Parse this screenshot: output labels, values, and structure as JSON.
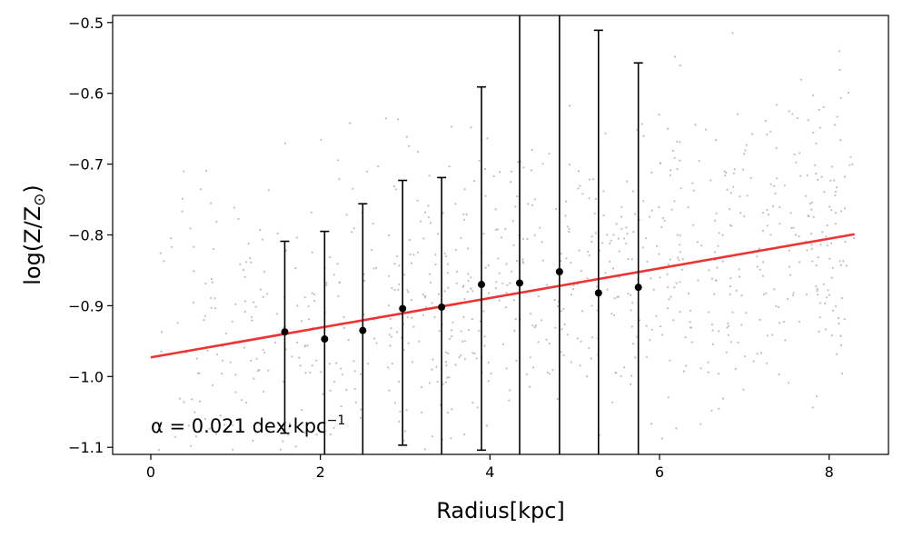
{
  "chart_data": {
    "type": "scatter",
    "title": "",
    "xlabel": "Radius[kpc]",
    "ylabel_main": "log(Z/Z",
    "ylabel_sub": "⊙",
    "ylabel_close": ")",
    "xlim": [
      -0.45,
      8.7
    ],
    "ylim": [
      -1.11,
      -0.49
    ],
    "x_ticks": [
      0,
      2,
      4,
      6,
      8
    ],
    "x_tick_labels": [
      "0",
      "2",
      "4",
      "6",
      "8"
    ],
    "y_ticks": [
      -0.5,
      -0.6,
      -0.7,
      -0.8,
      -0.9,
      -1.0,
      -1.1
    ],
    "y_tick_labels": [
      "−0.5",
      "−0.6",
      "−0.7",
      "−0.8",
      "−0.9",
      "−1.0",
      "−1.1"
    ],
    "grid": false,
    "fit_line": {
      "x": [
        0,
        8.3
      ],
      "y": [
        -0.973,
        -0.799
      ],
      "color": "#ee3333"
    },
    "binned_points": {
      "color": "#000000",
      "x": [
        1.58,
        2.05,
        2.5,
        2.97,
        3.43,
        3.9,
        4.35,
        4.82,
        5.28,
        5.75
      ],
      "y": [
        -0.937,
        -0.947,
        -0.935,
        -0.904,
        -0.902,
        -0.87,
        -0.868,
        -0.852,
        -0.882,
        -0.874
      ],
      "err_low": [
        -1.08,
        -1.11,
        -1.11,
        -1.097,
        -1.11,
        -1.104,
        -1.11,
        -1.11,
        -1.11,
        -1.11
      ],
      "err_high": [
        -0.809,
        -0.795,
        -0.756,
        -0.723,
        -0.719,
        -0.591,
        -0.49,
        -0.49,
        -0.511,
        -0.557
      ]
    },
    "scatter_background": {
      "color": "#aaaaaa",
      "n": 900
    },
    "annotation": {
      "prefix": "α = 0.021 dex·kpc",
      "superscript": "−1"
    }
  }
}
